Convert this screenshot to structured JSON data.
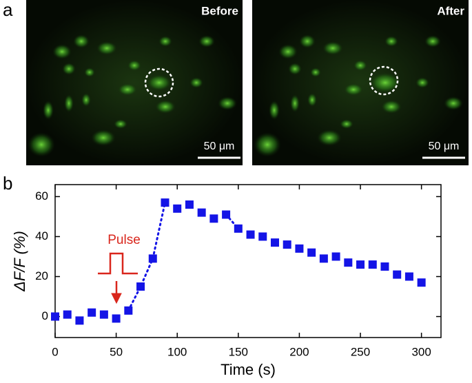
{
  "panels": {
    "a": "a",
    "b": "b"
  },
  "images": [
    {
      "label": "Before",
      "scale_bar": "50 μm"
    },
    {
      "label": "After",
      "scale_bar": "50 μm"
    }
  ],
  "chart_data": {
    "type": "scatter",
    "x": [
      0,
      10,
      20,
      30,
      40,
      50,
      60,
      70,
      80,
      90,
      100,
      110,
      120,
      130,
      140,
      150,
      160,
      170,
      180,
      190,
      200,
      210,
      220,
      230,
      240,
      250,
      260,
      270,
      280,
      290,
      300
    ],
    "series": [
      {
        "color": "#1414e6",
        "marker": "square",
        "values": [
          0,
          1,
          -2,
          2,
          1,
          -1,
          3,
          15,
          29,
          57,
          54,
          56,
          52,
          49,
          51,
          44,
          41,
          40,
          37,
          36,
          34,
          32,
          29,
          30,
          27,
          26,
          26,
          25,
          21,
          20,
          17
        ]
      },
      {
        "color": "#1414e6",
        "linestyle": "dotted",
        "values": [
          null,
          null,
          null,
          null,
          null,
          null,
          3,
          15,
          29,
          57,
          null,
          null,
          null,
          null,
          51,
          44,
          null,
          null,
          null,
          null,
          null,
          null,
          null,
          null,
          null,
          null,
          null,
          null,
          null,
          null,
          null
        ]
      }
    ],
    "xlabel": "Time (s)",
    "ylabel": "ΔF/F (%)",
    "xlim": [
      0,
      316
    ],
    "ylim": [
      -10.5,
      66
    ],
    "xticks": [
      0,
      50,
      100,
      150,
      200,
      250,
      300
    ],
    "yticks": [
      0,
      20,
      40,
      60
    ],
    "annotation": {
      "text": "Pulse",
      "color": "#d9261c"
    }
  }
}
